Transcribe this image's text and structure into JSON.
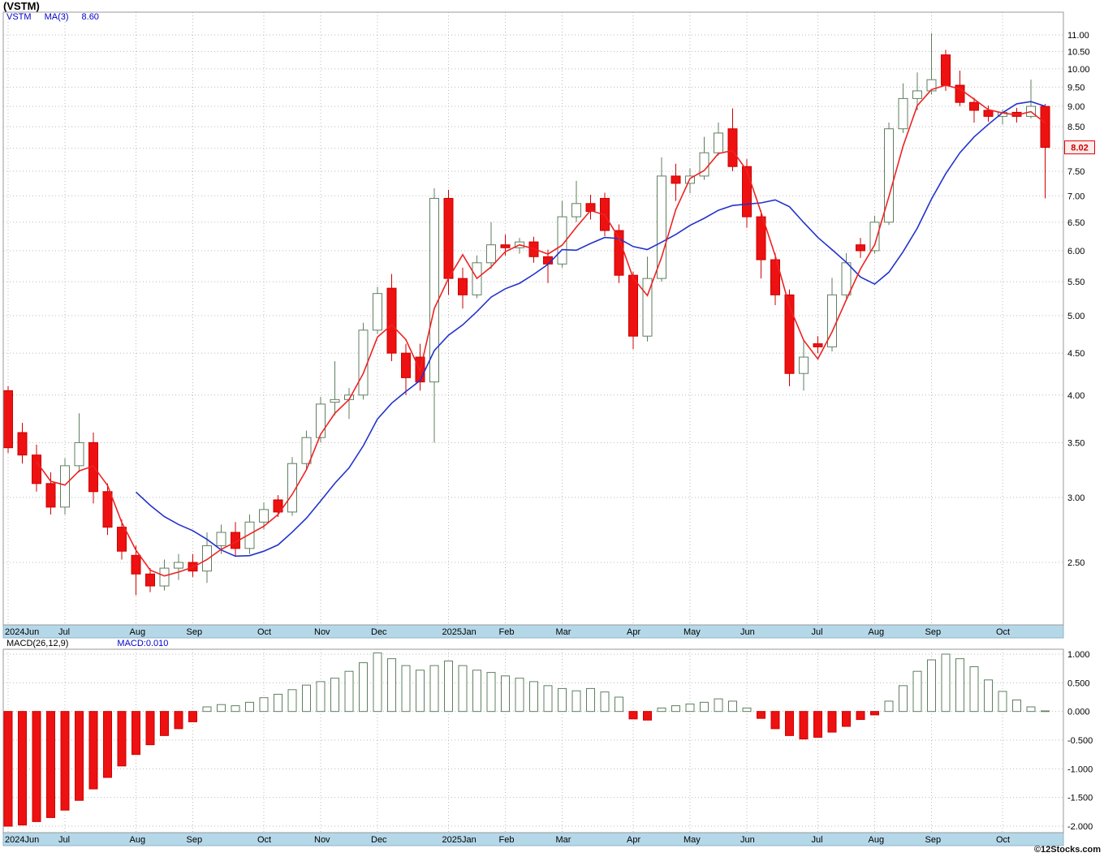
{
  "window": {
    "title": "(VSTM)"
  },
  "legend": {
    "symbol": "VSTM",
    "ma_label": "MA(3)",
    "ma_value": "8.60"
  },
  "macd_legend": {
    "label": "MACD(26,12,9)",
    "value": "MACD:0.010"
  },
  "footer": {
    "copyright": "©12Stocks.com"
  },
  "colors": {
    "up": "#ffffff",
    "up_stroke": "#5f7f5f",
    "down": "#ee1111",
    "down_stroke": "#cc0000",
    "ma_fast": "#ee2222",
    "ma_slow": "#2233cc",
    "axis_strip": "#b5d8e9",
    "grid": "#bbbbbb",
    "price_label_bg": "#ffecec",
    "price_label_border": "#dd0000",
    "price_label_text": "#cc0000",
    "legend_blue": "#0000cc"
  },
  "chart_data": {
    "type": "candlestick_with_macd",
    "symbol": "VSTM",
    "interval": "weekly",
    "price_axis": {
      "min": 2.5,
      "max": 11.0,
      "step": 0.5,
      "scale": "log",
      "last_price": 8.02,
      "hidden_tick_label": 8.0
    },
    "months": [
      {
        "label": "2024Jun",
        "week": 0
      },
      {
        "label": "Jul",
        "week": 4
      },
      {
        "label": "Aug",
        "week": 9
      },
      {
        "label": "Sep",
        "week": 13
      },
      {
        "label": "Oct",
        "week": 18
      },
      {
        "label": "Nov",
        "week": 22
      },
      {
        "label": "Dec",
        "week": 26
      },
      {
        "label": "2025Jan",
        "week": 31
      },
      {
        "label": "Feb",
        "week": 35
      },
      {
        "label": "Mar",
        "week": 39
      },
      {
        "label": "Apr",
        "week": 44
      },
      {
        "label": "May",
        "week": 48
      },
      {
        "label": "Jun",
        "week": 52
      },
      {
        "label": "Jul",
        "week": 57
      },
      {
        "label": "Aug",
        "week": 61
      },
      {
        "label": "Sep",
        "week": 65
      },
      {
        "label": "Oct",
        "week": 70
      }
    ],
    "candles_ohlc": [
      [
        4.05,
        4.1,
        3.4,
        3.45
      ],
      [
        3.6,
        3.7,
        3.3,
        3.38
      ],
      [
        3.38,
        3.48,
        3.05,
        3.12
      ],
      [
        3.12,
        3.22,
        2.86,
        2.92
      ],
      [
        2.92,
        3.35,
        2.86,
        3.28
      ],
      [
        3.28,
        3.8,
        3.22,
        3.5
      ],
      [
        3.5,
        3.6,
        2.95,
        3.05
      ],
      [
        3.05,
        3.12,
        2.7,
        2.76
      ],
      [
        2.76,
        2.82,
        2.52,
        2.58
      ],
      [
        2.55,
        2.62,
        2.28,
        2.42
      ],
      [
        2.42,
        2.46,
        2.3,
        2.34
      ],
      [
        2.34,
        2.52,
        2.31,
        2.46
      ],
      [
        2.46,
        2.56,
        2.38,
        2.5
      ],
      [
        2.5,
        2.56,
        2.4,
        2.44
      ],
      [
        2.44,
        2.72,
        2.36,
        2.62
      ],
      [
        2.62,
        2.78,
        2.56,
        2.72
      ],
      [
        2.72,
        2.8,
        2.54,
        2.6
      ],
      [
        2.6,
        2.86,
        2.56,
        2.8
      ],
      [
        2.8,
        2.96,
        2.74,
        2.9
      ],
      [
        2.98,
        3.02,
        2.84,
        2.88
      ],
      [
        2.88,
        3.36,
        2.85,
        3.3
      ],
      [
        3.3,
        3.62,
        3.24,
        3.55
      ],
      [
        3.55,
        3.98,
        3.5,
        3.9
      ],
      [
        3.92,
        4.4,
        3.78,
        3.95
      ],
      [
        3.95,
        4.08,
        3.74,
        4.0
      ],
      [
        4.0,
        4.9,
        3.95,
        4.8
      ],
      [
        4.8,
        5.42,
        4.75,
        5.32
      ],
      [
        5.4,
        5.62,
        4.4,
        4.5
      ],
      [
        4.5,
        4.62,
        4.0,
        4.2
      ],
      [
        4.45,
        4.62,
        4.05,
        4.15
      ],
      [
        4.15,
        7.15,
        3.5,
        6.95
      ],
      [
        6.95,
        7.12,
        5.3,
        5.55
      ],
      [
        5.55,
        5.72,
        5.1,
        5.3
      ],
      [
        5.3,
        5.92,
        5.25,
        5.8
      ],
      [
        5.8,
        6.5,
        5.7,
        6.1
      ],
      [
        6.1,
        6.28,
        5.92,
        6.05
      ],
      [
        6.05,
        6.22,
        5.95,
        6.15
      ],
      [
        6.15,
        6.24,
        5.8,
        5.9
      ],
      [
        5.9,
        6.02,
        5.48,
        5.78
      ],
      [
        5.78,
        6.9,
        5.72,
        6.6
      ],
      [
        6.6,
        7.3,
        6.5,
        6.85
      ],
      [
        6.85,
        7.02,
        6.55,
        6.7
      ],
      [
        6.95,
        7.06,
        6.25,
        6.35
      ],
      [
        6.35,
        6.46,
        5.48,
        5.6
      ],
      [
        5.6,
        5.66,
        4.55,
        4.72
      ],
      [
        4.72,
        5.9,
        4.65,
        5.55
      ],
      [
        5.55,
        7.8,
        5.5,
        7.4
      ],
      [
        7.4,
        7.66,
        6.9,
        7.25
      ],
      [
        7.25,
        7.56,
        7.05,
        7.4
      ],
      [
        7.4,
        8.26,
        7.32,
        7.9
      ],
      [
        7.9,
        8.6,
        7.84,
        8.35
      ],
      [
        8.45,
        8.95,
        7.5,
        7.6
      ],
      [
        7.6,
        7.76,
        6.4,
        6.6
      ],
      [
        6.6,
        6.72,
        5.55,
        5.85
      ],
      [
        5.85,
        5.96,
        5.15,
        5.3
      ],
      [
        5.3,
        5.38,
        4.1,
        4.25
      ],
      [
        4.25,
        4.66,
        4.05,
        4.45
      ],
      [
        4.62,
        4.72,
        4.5,
        4.58
      ],
      [
        4.58,
        5.56,
        4.52,
        5.3
      ],
      [
        5.3,
        5.96,
        5.25,
        5.8
      ],
      [
        6.1,
        6.22,
        5.88,
        6.0
      ],
      [
        6.0,
        6.62,
        5.95,
        6.5
      ],
      [
        6.5,
        8.6,
        6.45,
        8.45
      ],
      [
        8.45,
        9.6,
        8.35,
        9.2
      ],
      [
        9.2,
        9.9,
        8.9,
        9.4
      ],
      [
        9.4,
        11.05,
        9.3,
        9.7
      ],
      [
        10.4,
        10.55,
        9.4,
        9.55
      ],
      [
        9.55,
        9.95,
        9.0,
        9.1
      ],
      [
        9.1,
        9.22,
        8.6,
        8.9
      ],
      [
        8.9,
        9.02,
        8.62,
        8.75
      ],
      [
        8.75,
        8.92,
        8.55,
        8.85
      ],
      [
        8.85,
        8.96,
        8.6,
        8.75
      ],
      [
        8.75,
        9.7,
        8.7,
        9.0
      ],
      [
        9.0,
        9.06,
        6.95,
        8.02
      ]
    ],
    "moving_averages": {
      "fast_period": 3,
      "fast_color": "red",
      "fast_last": 8.6,
      "slow_period": 10,
      "slow_color": "blue"
    },
    "macd": {
      "label": "MACD(26,12,9)",
      "last": 0.01,
      "axis": {
        "min": -2.0,
        "max": 1.0,
        "step": 0.5
      },
      "histogram": [
        -2.0,
        -1.98,
        -1.92,
        -1.85,
        -1.72,
        -1.55,
        -1.35,
        -1.15,
        -0.95,
        -0.75,
        -0.58,
        -0.42,
        -0.3,
        -0.18,
        0.08,
        0.12,
        0.1,
        0.16,
        0.24,
        0.3,
        0.38,
        0.46,
        0.52,
        0.58,
        0.7,
        0.85,
        1.02,
        0.92,
        0.8,
        0.72,
        0.8,
        0.88,
        0.8,
        0.72,
        0.68,
        0.62,
        0.58,
        0.52,
        0.45,
        0.4,
        0.36,
        0.4,
        0.34,
        0.25,
        -0.13,
        -0.15,
        0.06,
        0.1,
        0.13,
        0.16,
        0.22,
        0.18,
        0.06,
        -0.12,
        -0.3,
        -0.42,
        -0.48,
        -0.45,
        -0.36,
        -0.26,
        -0.14,
        -0.06,
        0.18,
        0.45,
        0.7,
        0.9,
        1.0,
        0.92,
        0.78,
        0.55,
        0.35,
        0.2,
        0.08,
        0.01
      ]
    }
  }
}
